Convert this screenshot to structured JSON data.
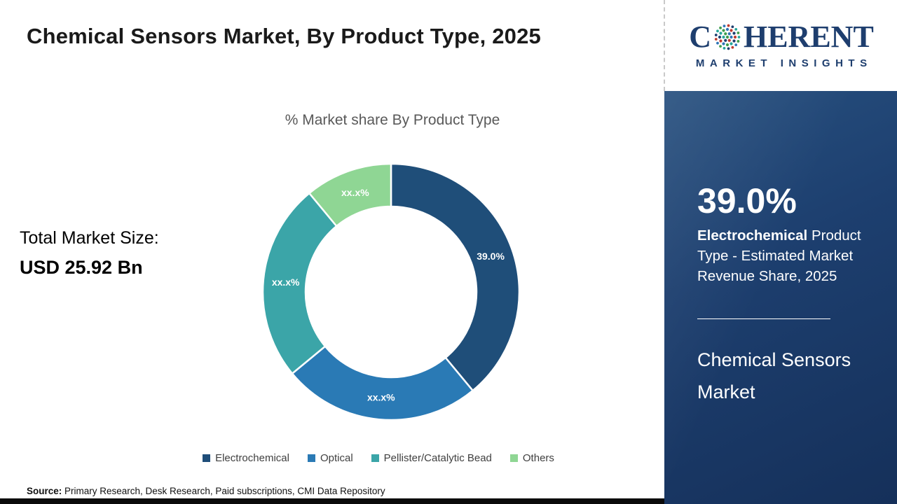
{
  "page": {
    "title": "Chemical Sensors Market, By Product Type, 2025",
    "source_label": "Source:",
    "source_text": " Primary Research, Desk Research, Paid subscriptions, CMI Data Repository"
  },
  "chart_data": {
    "type": "pie",
    "donut": true,
    "title": "% Market share By Product Type",
    "categories": [
      "Electrochemical",
      "Optical",
      "Pellister/Catalytic Bead",
      "Others"
    ],
    "values": [
      39.0,
      25.0,
      25.0,
      11.0
    ],
    "labels": [
      "39.0%",
      "xx.x%",
      "xx.x%",
      "xx.x%"
    ],
    "colors": [
      "#1f4e79",
      "#2a7ab5",
      "#3ba5a8",
      "#8fd694"
    ],
    "legend_position": "bottom",
    "start_angle_deg": 0,
    "direction": "clockwise"
  },
  "stats": {
    "total_label": "Total Market Size:",
    "total_value": "USD 25.92 Bn"
  },
  "sidebar": {
    "logo": {
      "letter_c": "C",
      "rest": "HERENT",
      "tagline": "MARKET INSIGHTS"
    },
    "share_value": "39.0%",
    "share_desc_bold": "Electrochemical",
    "share_desc_rest": " Product Type - Estimated Market Revenue Share, 2025",
    "market_name": "Chemical Sensors Market"
  },
  "colors": {
    "brand_navy": "#1e3e6e",
    "panel_navy": "#1d3f6f",
    "title_text": "#1a1a1a",
    "subtitle_text": "#595959"
  }
}
